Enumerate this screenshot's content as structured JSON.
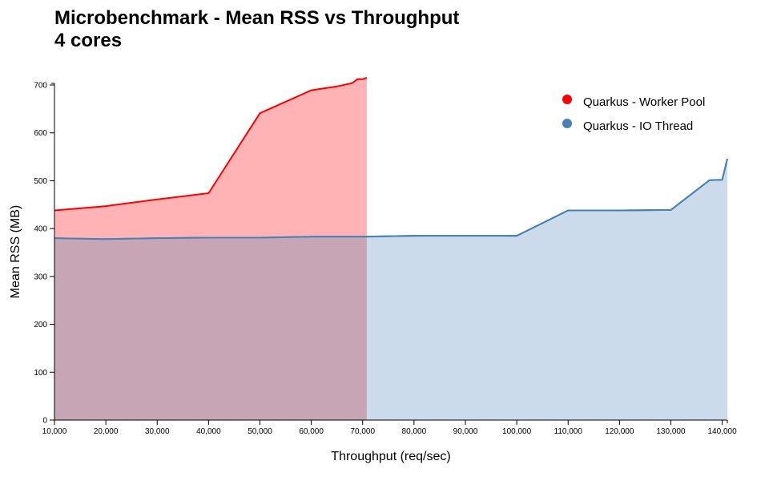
{
  "chart_data": {
    "type": "area",
    "title": "Microbenchmark - Mean RSS vs Throughput",
    "subtitle": "4 cores",
    "xlabel": "Throughput (req/sec)",
    "ylabel": "Mean RSS (MB)",
    "xlim": [
      10000,
      141000
    ],
    "ylim": [
      0,
      700
    ],
    "x_ticks": [
      10000,
      20000,
      30000,
      40000,
      50000,
      60000,
      70000,
      80000,
      90000,
      100000,
      110000,
      120000,
      130000,
      140000
    ],
    "x_tick_labels": [
      "10,000",
      "20,000",
      "30,000",
      "40,000",
      "50,000",
      "60,000",
      "70,000",
      "80,000",
      "90,000",
      "100,000",
      "110,000",
      "120,000",
      "130,000",
      "140,000"
    ],
    "y_ticks": [
      0,
      100,
      200,
      300,
      400,
      500,
      600,
      700
    ],
    "y_tick_labels": [
      "0",
      "100",
      "200",
      "300",
      "400",
      "500",
      "600",
      "700"
    ],
    "grid": false,
    "legend_position": "top-right",
    "series": [
      {
        "name": "Quarkus - Worker Pool",
        "color": "#ff0000",
        "fill": "#ffb3b5",
        "points": [
          [
            10000,
            438
          ],
          [
            20000,
            447
          ],
          [
            30000,
            461
          ],
          [
            40000,
            474
          ],
          [
            50000,
            641
          ],
          [
            60000,
            689
          ],
          [
            65000,
            697
          ],
          [
            68000,
            704
          ],
          [
            69000,
            712
          ],
          [
            70000,
            712
          ],
          [
            70800,
            715
          ]
        ]
      },
      {
        "name": "Quarkus - IO Thread",
        "color": "#4682b4",
        "fill": "#c8d9ea",
        "points": [
          [
            10000,
            380
          ],
          [
            20000,
            378
          ],
          [
            30000,
            380
          ],
          [
            40000,
            381
          ],
          [
            50000,
            381
          ],
          [
            60000,
            383
          ],
          [
            70000,
            383
          ],
          [
            80000,
            385
          ],
          [
            90000,
            385
          ],
          [
            100000,
            385
          ],
          [
            110000,
            438
          ],
          [
            120000,
            438
          ],
          [
            130000,
            439
          ],
          [
            137500,
            501
          ],
          [
            140000,
            502
          ],
          [
            141000,
            546
          ]
        ]
      }
    ]
  }
}
